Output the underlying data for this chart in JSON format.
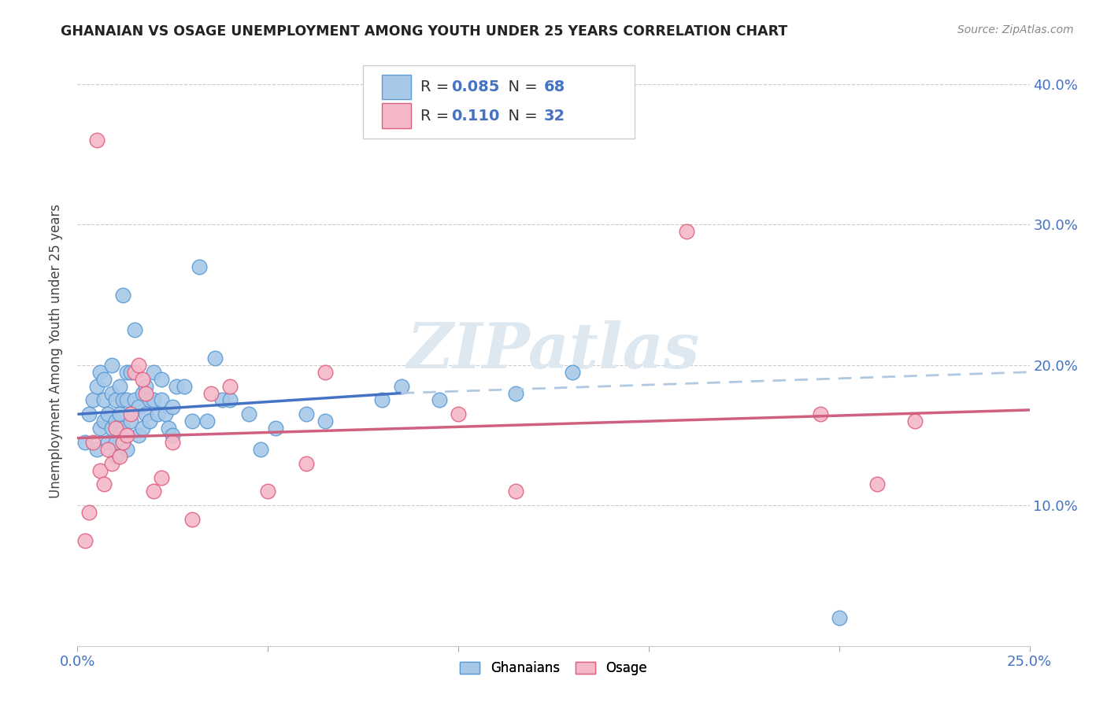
{
  "title": "GHANAIAN VS OSAGE UNEMPLOYMENT AMONG YOUTH UNDER 25 YEARS CORRELATION CHART",
  "source": "Source: ZipAtlas.com",
  "ylabel": "Unemployment Among Youth under 25 years",
  "xlim": [
    0.0,
    0.25
  ],
  "ylim": [
    0.0,
    0.42
  ],
  "xticks": [
    0.0,
    0.05,
    0.1,
    0.15,
    0.2,
    0.25
  ],
  "yticks": [
    0.0,
    0.1,
    0.2,
    0.3,
    0.4
  ],
  "xtick_labels": [
    "0.0%",
    "",
    "",
    "",
    "",
    "25.0%"
  ],
  "ytick_labels_right": [
    "",
    "10.0%",
    "20.0%",
    "30.0%",
    "40.0%"
  ],
  "ghanaians_color": "#a8c8e8",
  "ghanaians_edge": "#5b9bd5",
  "osage_color": "#f4b8c8",
  "osage_edge": "#e06080",
  "line_blue": "#4472c4",
  "line_pink": "#d06080",
  "line_dashed": "#b0c8e0",
  "R_ghanaians": 0.085,
  "N_ghanaians": 68,
  "R_osage": 0.11,
  "N_osage": 32,
  "background_color": "#ffffff",
  "watermark_text": "ZIPatlas",
  "watermark_color": "#dde8f0",
  "ghanaians_x": [
    0.002,
    0.003,
    0.004,
    0.005,
    0.005,
    0.006,
    0.006,
    0.007,
    0.007,
    0.007,
    0.008,
    0.008,
    0.009,
    0.009,
    0.009,
    0.01,
    0.01,
    0.01,
    0.01,
    0.011,
    0.011,
    0.011,
    0.012,
    0.012,
    0.012,
    0.013,
    0.013,
    0.013,
    0.014,
    0.014,
    0.015,
    0.015,
    0.016,
    0.016,
    0.017,
    0.017,
    0.018,
    0.018,
    0.019,
    0.019,
    0.02,
    0.02,
    0.021,
    0.022,
    0.022,
    0.023,
    0.024,
    0.025,
    0.025,
    0.026,
    0.028,
    0.03,
    0.032,
    0.034,
    0.036,
    0.038,
    0.04,
    0.045,
    0.048,
    0.052,
    0.06,
    0.065,
    0.08,
    0.085,
    0.095,
    0.115,
    0.13,
    0.2
  ],
  "ghanaians_y": [
    0.145,
    0.165,
    0.175,
    0.14,
    0.185,
    0.155,
    0.195,
    0.175,
    0.19,
    0.16,
    0.145,
    0.165,
    0.18,
    0.155,
    0.2,
    0.16,
    0.145,
    0.175,
    0.135,
    0.165,
    0.185,
    0.155,
    0.175,
    0.155,
    0.25,
    0.195,
    0.175,
    0.14,
    0.16,
    0.195,
    0.175,
    0.225,
    0.17,
    0.15,
    0.18,
    0.155,
    0.165,
    0.185,
    0.175,
    0.16,
    0.195,
    0.175,
    0.165,
    0.19,
    0.175,
    0.165,
    0.155,
    0.17,
    0.15,
    0.185,
    0.185,
    0.16,
    0.27,
    0.16,
    0.205,
    0.175,
    0.175,
    0.165,
    0.14,
    0.155,
    0.165,
    0.16,
    0.175,
    0.185,
    0.175,
    0.18,
    0.195,
    0.02
  ],
  "osage_x": [
    0.002,
    0.003,
    0.004,
    0.005,
    0.006,
    0.007,
    0.008,
    0.009,
    0.01,
    0.011,
    0.012,
    0.013,
    0.014,
    0.015,
    0.016,
    0.017,
    0.018,
    0.02,
    0.022,
    0.025,
    0.03,
    0.035,
    0.04,
    0.05,
    0.06,
    0.065,
    0.1,
    0.115,
    0.16,
    0.195,
    0.21,
    0.22
  ],
  "osage_y": [
    0.075,
    0.095,
    0.145,
    0.36,
    0.125,
    0.115,
    0.14,
    0.13,
    0.155,
    0.135,
    0.145,
    0.15,
    0.165,
    0.195,
    0.2,
    0.19,
    0.18,
    0.11,
    0.12,
    0.145,
    0.09,
    0.18,
    0.185,
    0.11,
    0.13,
    0.195,
    0.165,
    0.11,
    0.295,
    0.165,
    0.115,
    0.16
  ],
  "blue_line_x0": 0.0,
  "blue_line_x_solid_end": 0.085,
  "blue_line_x1": 0.25,
  "blue_line_y_start": 0.165,
  "blue_line_y_solid_end": 0.18,
  "blue_line_y_end": 0.195,
  "pink_line_x0": 0.0,
  "pink_line_x1": 0.25,
  "pink_line_y_start": 0.148,
  "pink_line_y_end": 0.168
}
